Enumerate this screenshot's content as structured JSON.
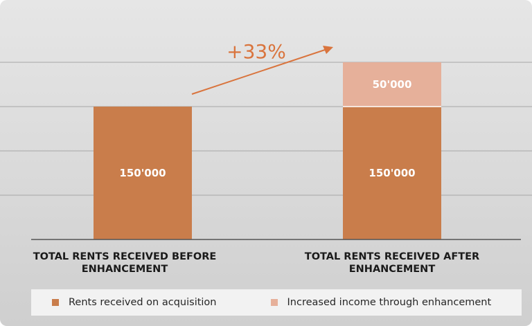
{
  "colors": {
    "base": "#c97d4b",
    "increase": "#e6b09a",
    "arrow": "#d9743d",
    "axis": "#555555",
    "grid": "#a6a6a6"
  },
  "chart_data": {
    "type": "bar",
    "stacked": true,
    "categories": [
      "TOTAL RENTS RECEIVED BEFORE ENHANCEMENT",
      "TOTAL RENTS RECEIVED AFTER ENHANCEMENT"
    ],
    "category_lines": [
      [
        "TOTAL RENTS RECEIVED BEFORE",
        "ENHANCEMENT"
      ],
      [
        "TOTAL RENTS RECEIVED AFTER",
        "ENHANCEMENT"
      ]
    ],
    "series": [
      {
        "name": "Rents received on acquisition",
        "values": [
          150000,
          150000
        ],
        "labels": [
          "150'000",
          "150'000"
        ],
        "color": "#c97d4b"
      },
      {
        "name": "Increased income through enhancement",
        "values": [
          0,
          50000
        ],
        "labels": [
          "",
          "50'000"
        ],
        "color": "#e6b09a"
      }
    ],
    "ylim": [
      0,
      200000
    ],
    "gridlines": [
      50000,
      100000,
      150000,
      200000
    ],
    "annotation": {
      "text": "+33%",
      "type": "arrow",
      "color": "#d9743d"
    },
    "legend_position": "bottom",
    "grid": true
  }
}
